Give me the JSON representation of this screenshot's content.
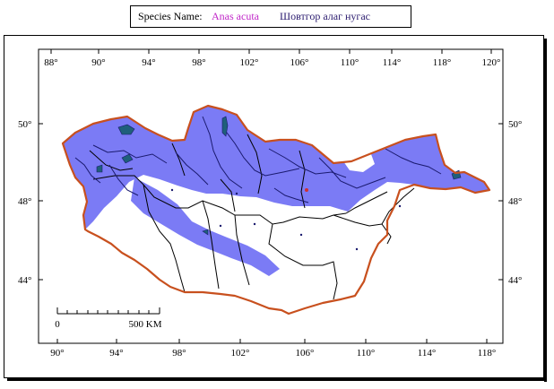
{
  "header": {
    "species_label": "Species Name:",
    "latin_name": "Anas acuta",
    "local_name": "Шовтгор алаг нугас"
  },
  "map": {
    "top_longitudes": [
      "88°",
      "90°",
      "94°",
      "98°",
      "102°",
      "106°",
      "110°",
      "114°",
      "118°",
      "120°"
    ],
    "bottom_longitudes": [
      "90°",
      "94°",
      "98°",
      "102°",
      "106°",
      "110°",
      "114°",
      "118°"
    ],
    "left_latitudes": [
      "50°",
      "48°",
      "44°"
    ],
    "right_latitudes": [
      "50°",
      "48°",
      "44°"
    ],
    "scale_bar": {
      "start_label": "0",
      "end_label": "500 KM"
    },
    "colors": {
      "range": "#7b7bf5",
      "border": "#c8501e",
      "rivers": "#1a1a6e",
      "lakes": "#1f5f7a",
      "provinces": "#000000"
    }
  }
}
